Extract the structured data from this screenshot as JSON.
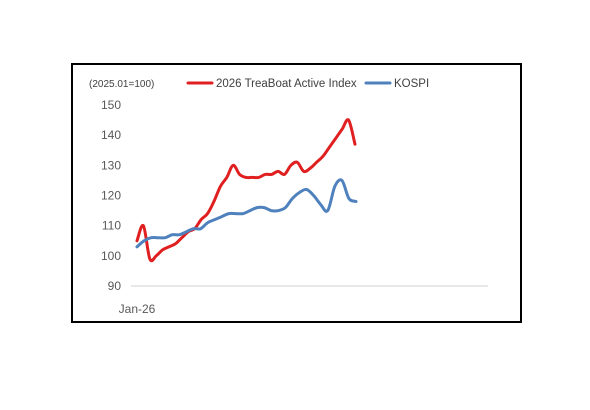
{
  "chart_data": {
    "type": "line",
    "unit_note": "(2025.01=100)",
    "x_start_label": "Jan-26",
    "ylim": [
      90,
      150
    ],
    "yticks": [
      "90",
      "100",
      "110",
      "120",
      "130",
      "140",
      "150"
    ],
    "grid": false,
    "legend_position": "top",
    "series": [
      {
        "name": "2026 TreaBoat Active Index",
        "color": "#e02020",
        "values": [
          105,
          110,
          99,
          100,
          102,
          103,
          104,
          106,
          108,
          109,
          112,
          114,
          118,
          123,
          126,
          130,
          127,
          126,
          126,
          126,
          127,
          127,
          128,
          127,
          130,
          131,
          128,
          129,
          131,
          133,
          136,
          139,
          142,
          145,
          137
        ]
      },
      {
        "name": "KOSPI",
        "color": "#4f81bd",
        "values": [
          103,
          105,
          106,
          106,
          106,
          107,
          107,
          108,
          109,
          109,
          111,
          112,
          113,
          114,
          114,
          114,
          115,
          116,
          116,
          115,
          115,
          116,
          119,
          121,
          122,
          120,
          117,
          115,
          123,
          125,
          119,
          118
        ]
      }
    ]
  }
}
